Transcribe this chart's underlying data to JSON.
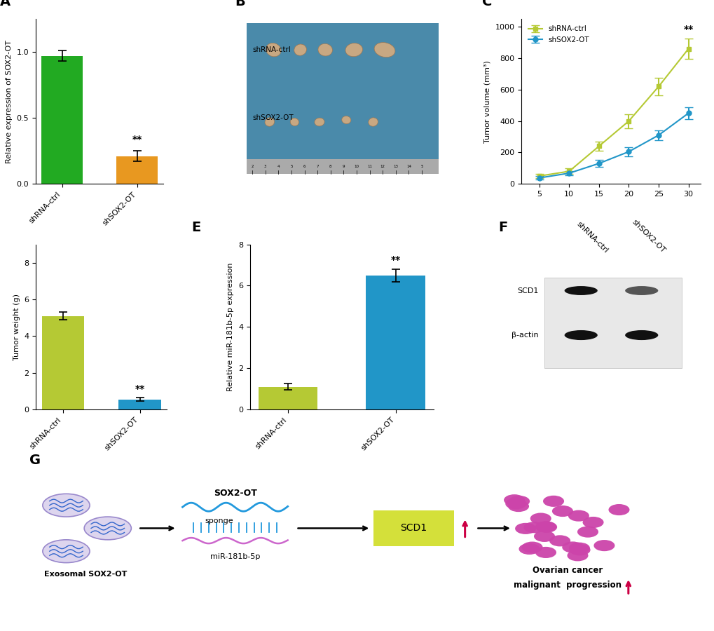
{
  "panel_A": {
    "categories": [
      "shRNA-ctrl",
      "shSOX2-OT"
    ],
    "values": [
      0.97,
      0.21
    ],
    "errors": [
      0.04,
      0.04
    ],
    "colors": [
      "#22aa22",
      "#e89820"
    ],
    "ylabel": "Relative expression of SOX2-OT",
    "ylim": [
      0,
      1.25
    ],
    "yticks": [
      0.0,
      0.5,
      1.0
    ]
  },
  "panel_C": {
    "x": [
      5,
      10,
      15,
      20,
      25,
      30
    ],
    "ctrl_y": [
      50,
      80,
      240,
      400,
      620,
      860
    ],
    "ctrl_err": [
      15,
      18,
      30,
      45,
      55,
      65
    ],
    "sox2ot_y": [
      38,
      68,
      130,
      205,
      310,
      450
    ],
    "sox2ot_err": [
      10,
      15,
      22,
      28,
      32,
      38
    ],
    "ctrl_color": "#b5c934",
    "sox2ot_color": "#2196c8",
    "ylabel": "Tumor volume (mm³)",
    "ylim": [
      0,
      1050
    ],
    "yticks": [
      0,
      200,
      400,
      600,
      800,
      1000
    ]
  },
  "panel_D": {
    "categories": [
      "shRNA-ctrl",
      "shSOX2-OT"
    ],
    "values": [
      5.1,
      0.55
    ],
    "errors": [
      0.2,
      0.1
    ],
    "colors": [
      "#b5c934",
      "#2196c8"
    ],
    "ylabel": "Tumor weight (g)",
    "ylim": [
      0,
      9
    ],
    "yticks": [
      0,
      2,
      4,
      6,
      8
    ]
  },
  "panel_E": {
    "categories": [
      "shRNA-ctrl",
      "shSOX2-OT"
    ],
    "values": [
      1.1,
      6.5
    ],
    "errors": [
      0.15,
      0.3
    ],
    "colors": [
      "#b5c934",
      "#2196c8"
    ],
    "ylabel": "Relative miR-181b-5p expression",
    "ylim": [
      0,
      8
    ],
    "yticks": [
      0,
      2,
      4,
      6,
      8
    ]
  },
  "bg_color": "#ffffff"
}
